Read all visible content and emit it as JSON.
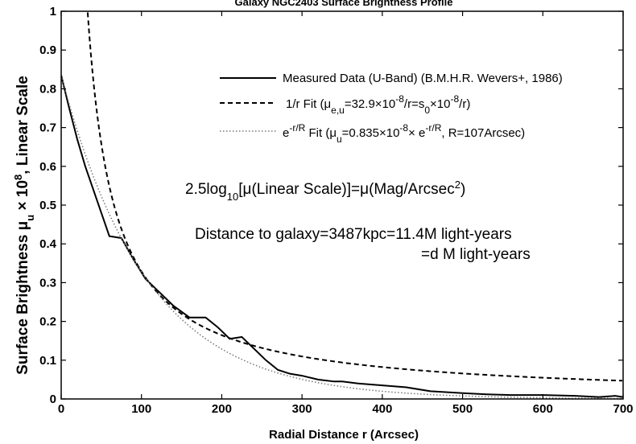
{
  "chart_data": {
    "type": "line",
    "title": "Galaxy NGC2403 Surface Brightness Profile",
    "xlabel": "Radial Distance r (Arcsec)",
    "ylabel": {
      "p1": "Surface Brightness μ",
      "sub": "u",
      "p2": " × 10",
      "sup": "8",
      "p3": ", Linear Scale"
    },
    "xlim": [
      0,
      700
    ],
    "ylim": [
      0,
      1
    ],
    "xticks": [
      0,
      100,
      200,
      300,
      400,
      500,
      600,
      700
    ],
    "yticks": [
      0,
      0.1,
      0.2,
      0.3,
      0.4,
      0.5,
      0.6,
      0.7,
      0.8,
      0.9,
      1
    ],
    "xtick_labels": [
      "0",
      "100",
      "200",
      "300",
      "400",
      "500",
      "600",
      "700"
    ],
    "ytick_labels": [
      "0",
      "0.1",
      "0.2",
      "0.3",
      "0.4",
      "0.5",
      "0.6",
      "0.7",
      "0.8",
      "0.9",
      "1"
    ],
    "grid": false,
    "legend_placement": "top-right",
    "series": [
      {
        "name": "Measured Data (U-Band)  (B.M.H.R. Wevers+, 1986)",
        "style": "solid",
        "color": "#000000",
        "x": [
          0,
          10,
          20,
          30,
          40,
          50,
          60,
          75,
          90,
          105,
          120,
          140,
          160,
          180,
          195,
          210,
          225,
          240,
          255,
          270,
          285,
          300,
          320,
          340,
          350,
          370,
          400,
          430,
          460,
          500,
          530,
          560,
          600,
          640,
          670,
          690,
          700
        ],
        "y": [
          0.835,
          0.75,
          0.67,
          0.6,
          0.54,
          0.48,
          0.42,
          0.415,
          0.36,
          0.31,
          0.28,
          0.24,
          0.21,
          0.21,
          0.185,
          0.155,
          0.16,
          0.13,
          0.1,
          0.075,
          0.065,
          0.06,
          0.05,
          0.045,
          0.045,
          0.04,
          0.035,
          0.03,
          0.02,
          0.015,
          0.012,
          0.01,
          0.01,
          0.008,
          0.005,
          0.008,
          0.005
        ]
      },
      {
        "name": "1/r Fit",
        "style": "dashed",
        "color": "#000000",
        "function": "inverse",
        "coefficient": 32.9,
        "x_range": [
          33,
          700
        ]
      },
      {
        "name": "e^-r/R Fit",
        "style": "dotted",
        "color": "#777777",
        "function": "exponential",
        "amplitude": 0.835,
        "scale_length": 107,
        "x_range": [
          0,
          700
        ]
      }
    ],
    "legend": {
      "measured": "Measured Data (U-Band)  (B.M.H.R. Wevers+, 1986)",
      "inv": {
        "a": "1/r Fit (μ",
        "b": "e,u",
        "c": "=32.9×10",
        "d": "-8",
        "e": "/r=s",
        "f": "0",
        "g": "×10",
        "h": "-8",
        "i": "/r)"
      },
      "exp": {
        "a": "e",
        "b": "-r/R",
        "c": " Fit (μ",
        "d": "u",
        "e": "=0.835×10",
        "f": "-8",
        "g": "× e",
        "h": "-r/R",
        "i": ", R=107Arcsec)"
      }
    },
    "annotations": {
      "mag": {
        "a": "2.5log",
        "b": "10",
        "c": "[μ(Linear Scale)]=μ(Mag/Arcsec",
        "d": "2",
        "e": ")"
      },
      "distance_line1": "Distance to galaxy=3487kpc=11.4M light-years",
      "distance_line2": "=d M light-years"
    }
  }
}
